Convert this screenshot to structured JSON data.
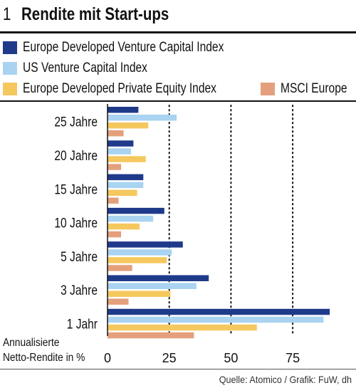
{
  "figure": {
    "number": "1",
    "title": "Rendite mit Start-ups"
  },
  "legend": [
    {
      "label": "Europe Developed Venture Capital Index",
      "color": "#1f3a8a"
    },
    {
      "label": "US Venture Capital Index",
      "color": "#a9d3f0"
    },
    {
      "label": "Europe Developed Private Equity Index",
      "color": "#f5c85e"
    },
    {
      "label": "MSCI Europe",
      "color": "#e4a07c"
    }
  ],
  "chart_data": {
    "type": "bar",
    "orientation": "horizontal",
    "categories": [
      "25 Jahre",
      "20 Jahre",
      "15 Jahre",
      "10 Jahre",
      "5 Jahre",
      "3 Jahre",
      "1 Jahr"
    ],
    "series": [
      {
        "name": "Europe Developed Venture Capital Index",
        "color": "#1f3a8a",
        "values": [
          12.5,
          10.5,
          14.5,
          23,
          30.5,
          41,
          90
        ]
      },
      {
        "name": "US Venture Capital Index",
        "color": "#a9d3f0",
        "values": [
          28,
          9.5,
          14.5,
          18.5,
          26,
          36,
          87.5
        ]
      },
      {
        "name": "Europe Developed Private Equity Index",
        "color": "#f5c85e",
        "values": [
          16.5,
          15.5,
          12,
          13,
          24,
          25.5,
          60.5
        ]
      },
      {
        "name": "MSCI Europe",
        "color": "#e4a07c",
        "values": [
          6.5,
          5.5,
          4.5,
          5.5,
          10,
          8.5,
          35
        ]
      }
    ],
    "xlabel": "Annualisierte Netto-Rendite in %",
    "xticks": [
      0,
      25,
      50,
      75
    ],
    "xlim": [
      0,
      92
    ],
    "grid": "dotted vertical at 25, 50, 75"
  },
  "footer": {
    "source": "Quelle: Atomico / Grafik: FuW, dh"
  }
}
